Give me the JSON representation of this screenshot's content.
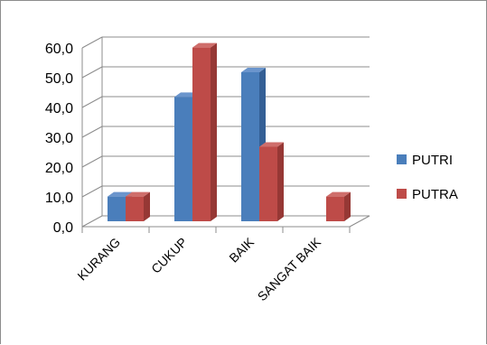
{
  "chart_data": {
    "type": "bar",
    "title": "",
    "xlabel": "",
    "ylabel": "",
    "categories": [
      "KURANG",
      "CUKUP",
      "BAIK",
      "SANGAT BAIK"
    ],
    "series": [
      {
        "name": "PUTRI",
        "values": [
          8.3,
          41.7,
          50.0,
          0.0
        ]
      },
      {
        "name": "PUTRA",
        "values": [
          8.3,
          58.3,
          25.0,
          8.3
        ]
      }
    ],
    "ylim": [
      0,
      60
    ],
    "yticks": [
      "0,0",
      "10,0",
      "20,0",
      "30,0",
      "40,0",
      "50,0",
      "60,0"
    ],
    "grid": true,
    "legend_position": "right",
    "colors": {
      "PUTRI": "#4a7ebb",
      "PUTRA": "#be4b48"
    }
  }
}
